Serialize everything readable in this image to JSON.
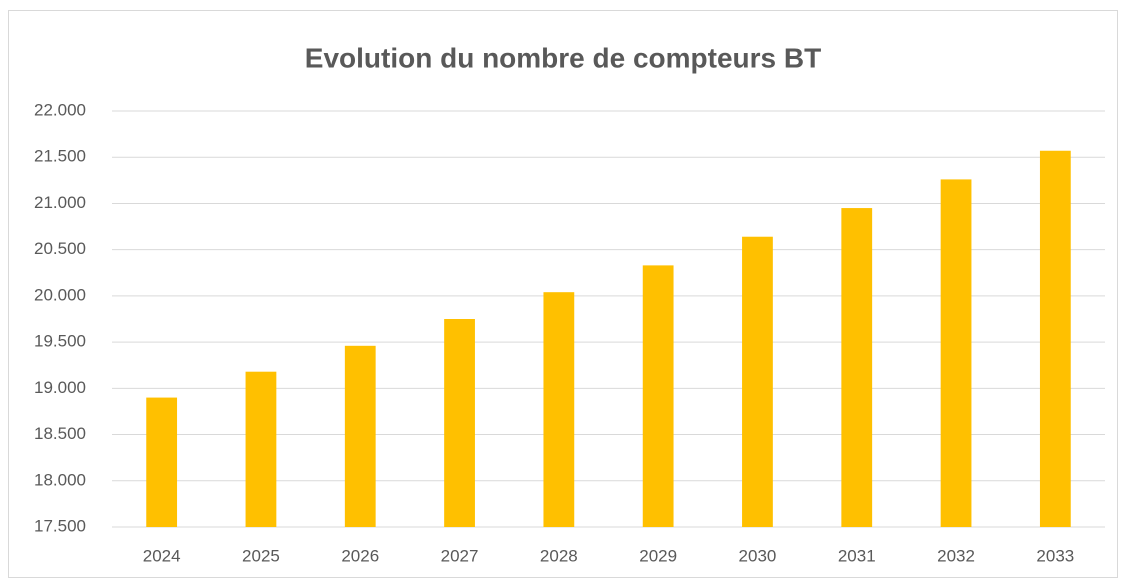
{
  "chart_data": {
    "type": "bar",
    "title": "Evolution du nombre de compteurs BT",
    "categories": [
      "2024",
      "2025",
      "2026",
      "2027",
      "2028",
      "2029",
      "2030",
      "2031",
      "2032",
      "2033"
    ],
    "values": [
      18900,
      19180,
      19460,
      19750,
      20040,
      20330,
      20640,
      20950,
      21260,
      21570
    ],
    "color": "#ffc000",
    "ylim": [
      17500,
      22000
    ],
    "yticks": [
      {
        "value": 17500,
        "label": "17.500"
      },
      {
        "value": 18000,
        "label": "18.000"
      },
      {
        "value": 18500,
        "label": "18.500"
      },
      {
        "value": 19000,
        "label": "19.000"
      },
      {
        "value": 19500,
        "label": "19.500"
      },
      {
        "value": 20000,
        "label": "20.000"
      },
      {
        "value": 20500,
        "label": "20.500"
      },
      {
        "value": 21000,
        "label": "21.000"
      },
      {
        "value": 21500,
        "label": "21.500"
      },
      {
        "value": 22000,
        "label": "22.000"
      }
    ],
    "grid": true
  }
}
